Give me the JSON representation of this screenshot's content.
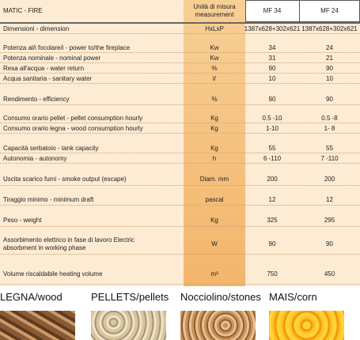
{
  "header": {
    "title": "MATIC - FIRE",
    "unit": "Unità di misura measurement",
    "models": [
      "MF 34",
      "MF 24"
    ]
  },
  "table": {
    "rows": [
      [
        "Dimensioni - dimension",
        "HxLxP",
        "1387x628+302x621",
        "1387x628+302x621"
      ],
      [
        "Potenza al/i focolare/i - power to/the fireplace",
        "Kw",
        "34",
        "24"
      ],
      [
        "Potenza nominale - nominal power",
        "Kw",
        "31",
        "21"
      ],
      [
        "Resa all'acqua - water return",
        "%",
        "90",
        "90"
      ],
      [
        "Acqua sanitaria - sanitary water",
        "l/",
        "10",
        "10"
      ],
      [
        "Rendimento - efficiency",
        "%",
        "90",
        "90"
      ],
      [
        "Consumo orario pellet - pellet consumption hourly",
        "Kg",
        "0.5 -10",
        "0.5 -8"
      ],
      [
        "Consumo orario legna - wood consumption hourly",
        "Kg",
        "1-10",
        "1- 8"
      ],
      [
        "Capacità serbatoio - tank capacity",
        "Kg",
        "55",
        "55"
      ],
      [
        "Autonomia - autonomy",
        "h",
        "6 -110",
        "7 -110"
      ],
      [
        "Uscita scarico fumi - smoke output (escape)",
        "Diam. mm",
        "200",
        "200"
      ],
      [
        "Tiraggio minimo - minimum draft",
        "pascal",
        "12",
        "12"
      ],
      [
        "Peso - weight",
        "Kg",
        "325",
        "295"
      ],
      [
        "Assorbimento elettrico in fase di lavoro Electric absorbment in working phase",
        "W",
        "90",
        "90"
      ],
      [
        "Volume riscaldabile heating volume",
        "m³",
        "750",
        "450"
      ]
    ]
  },
  "fuels": [
    "LEGNA/wood",
    "PELLETS/pellets",
    "Nocciolino/stones",
    "MAIS/corn"
  ]
}
